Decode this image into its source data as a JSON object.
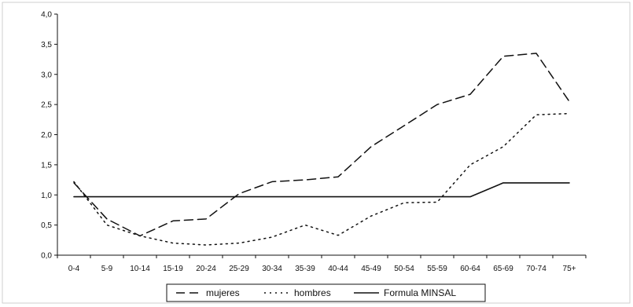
{
  "chart_data": {
    "type": "line",
    "title": "",
    "xlabel": "",
    "ylabel": "",
    "categories": [
      "0-4",
      "5-9",
      "10-14",
      "15-19",
      "20-24",
      "25-29",
      "30-34",
      "35-39",
      "40-44",
      "45-49",
      "50-54",
      "55-59",
      "60-64",
      "65-69",
      "70-74",
      "75+"
    ],
    "ylim": [
      0,
      4
    ],
    "yticks": [
      "0,0",
      "0,5",
      "1,0",
      "1,5",
      "2,0",
      "2,5",
      "3,0",
      "3,5",
      "4,0"
    ],
    "grid": false,
    "legend_position": "bottom",
    "series": [
      {
        "name": "mujeres",
        "style": "dashed",
        "color": "#111111",
        "values": [
          1.2,
          0.6,
          0.32,
          0.57,
          0.6,
          1.02,
          1.22,
          1.25,
          1.3,
          1.8,
          2.15,
          2.5,
          2.67,
          3.3,
          3.35,
          2.55
        ]
      },
      {
        "name": "hombres",
        "style": "dotted",
        "color": "#111111",
        "values": [
          1.22,
          0.5,
          0.32,
          0.2,
          0.17,
          0.2,
          0.3,
          0.5,
          0.33,
          0.65,
          0.87,
          0.88,
          1.5,
          1.8,
          2.33,
          2.35
        ]
      },
      {
        "name": "Formula MINSAL",
        "style": "solid",
        "color": "#111111",
        "values": [
          0.97,
          0.97,
          0.97,
          0.97,
          0.97,
          0.97,
          0.97,
          0.97,
          0.97,
          0.97,
          0.97,
          0.97,
          0.97,
          1.2,
          1.2,
          1.2
        ]
      }
    ]
  }
}
